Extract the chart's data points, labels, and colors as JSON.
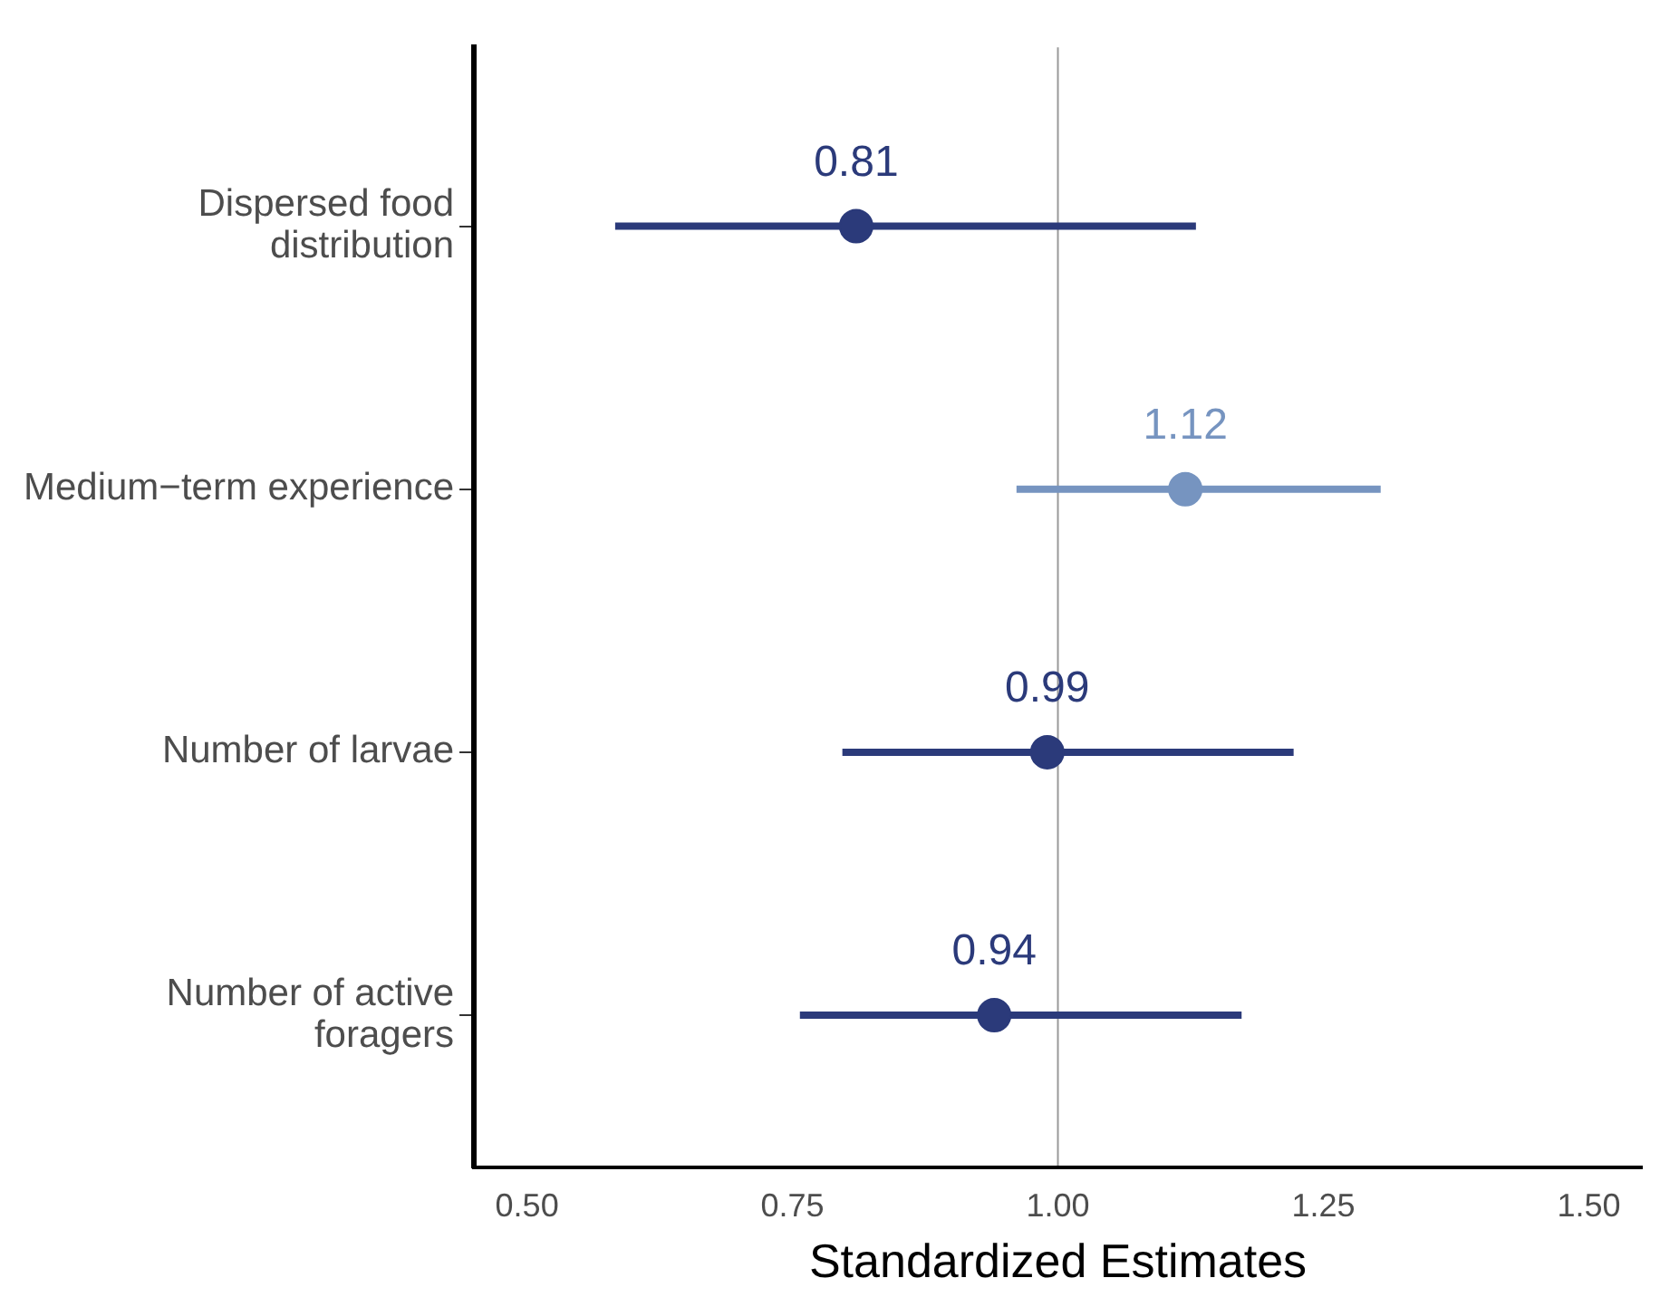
{
  "chart_data": {
    "type": "scatter",
    "orientation": "horizontal",
    "xlabel": "Standardized Estimates",
    "categories": [
      "Dispersed food distribution",
      "Medium−term experience",
      "Number of larvae",
      "Number of active foragers"
    ],
    "values": [
      0.81,
      1.12,
      0.99,
      0.94
    ],
    "errors": [
      [
        0.583,
        1.13
      ],
      [
        0.961,
        1.304
      ],
      [
        0.797,
        1.222
      ],
      [
        0.757,
        1.173
      ]
    ],
    "colors": [
      "#2b3a7a",
      "#7694c0",
      "#2b3a7a",
      "#2b3a7a"
    ],
    "data_labels": true,
    "marker": "circle",
    "grid": false,
    "legend": false,
    "xlim": [
      0.45,
      1.55
    ],
    "xticks": [
      {
        "value": 0.5,
        "label": "0.50"
      },
      {
        "value": 0.75,
        "label": "0.75"
      },
      {
        "value": 1,
        "label": "1.00"
      },
      {
        "value": 1.25,
        "label": "1.25"
      },
      {
        "value": 1.5,
        "label": "1.50"
      }
    ],
    "ref_lines": [
      {
        "axis": "x",
        "value": 1,
        "color": "#999999"
      }
    ]
  }
}
